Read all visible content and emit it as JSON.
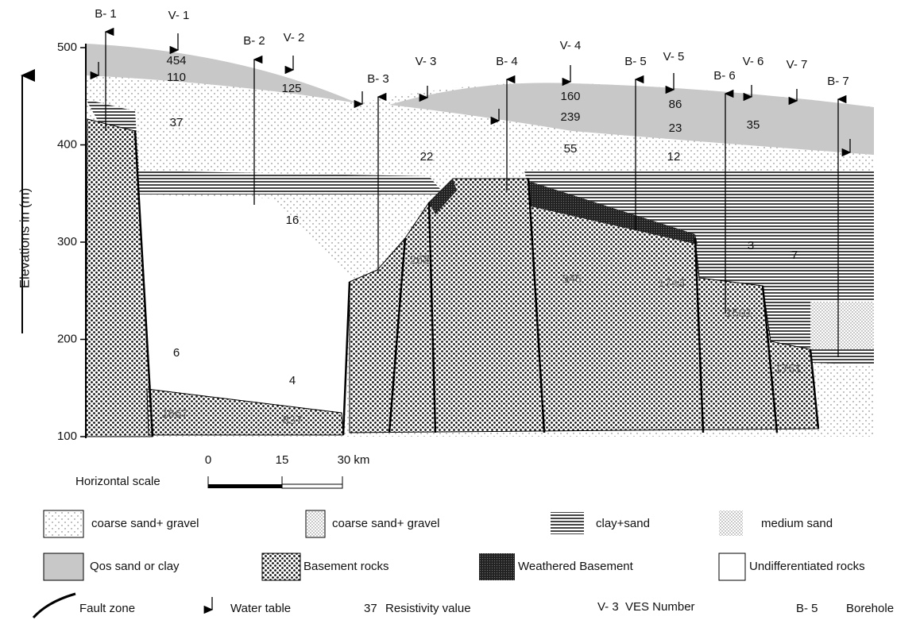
{
  "axis": {
    "label": "Elevations in (m)",
    "ticks": [
      100,
      200,
      300,
      400,
      500
    ]
  },
  "boreholes": [
    "B- 1",
    "B- 2",
    "B- 3",
    "B- 4",
    "B- 5",
    "B- 6",
    "B- 7"
  ],
  "ves": [
    "V- 1",
    "V- 2",
    "V- 3",
    "V- 4",
    "V- 5",
    "V- 6",
    "V- 7"
  ],
  "resistivity": [
    "454",
    "110",
    "125",
    "37",
    "160",
    "239",
    "55",
    "86",
    "23",
    "12",
    "35",
    "22",
    "16",
    "6",
    "4",
    "252",
    "345",
    "1743",
    "1501",
    "1751",
    "1667",
    "837",
    "3",
    "7"
  ],
  "scale": {
    "title": "Horizontal scale",
    "marks": [
      "0",
      "15",
      "30 km"
    ]
  },
  "legend": [
    "coarse sand+ gravel",
    "coarse sand+ gravel",
    "clay+sand",
    "medium sand",
    "Qos sand or clay",
    "Basement rocks",
    "Weathered Basement",
    "Undifferentiated rocks",
    "Fault zone",
    "Water table",
    "37",
    "Resistivity value",
    "V- 3",
    "VES Number",
    "B- 5",
    "Borehole"
  ]
}
